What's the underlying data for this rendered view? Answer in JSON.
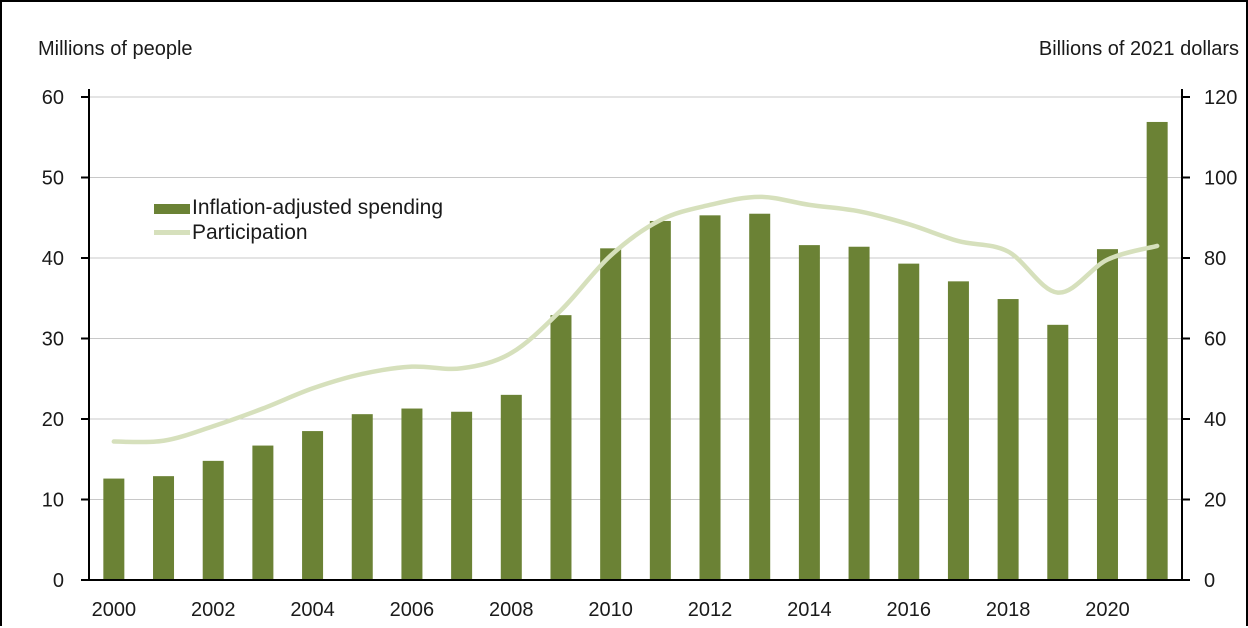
{
  "chart_data": {
    "type": "bar",
    "x": [
      "2000",
      "2001",
      "2002",
      "2003",
      "2004",
      "2005",
      "2006",
      "2007",
      "2008",
      "2009",
      "2010",
      "2011",
      "2012",
      "2013",
      "2014",
      "2015",
      "2016",
      "2017",
      "2018",
      "2019",
      "2020",
      "2021"
    ],
    "x_tick_labels": [
      "2000",
      "2002",
      "2004",
      "2006",
      "2008",
      "2010",
      "2012",
      "2014",
      "2016",
      "2018",
      "2020"
    ],
    "left_axis": {
      "label": "Millions of people",
      "ylim": [
        0,
        60
      ],
      "ticks": [
        0,
        10,
        20,
        30,
        40,
        50,
        60
      ]
    },
    "right_axis": {
      "label": "Billions of 2021 dollars",
      "ylim": [
        0,
        120
      ],
      "ticks": [
        0,
        20,
        40,
        60,
        80,
        100,
        120
      ]
    },
    "grid": true,
    "legend_position": "upper-left",
    "series": [
      {
        "name": "Inflation-adjusted spending",
        "type": "bar",
        "axis": "right",
        "color": "#6b8235",
        "values": [
          25.2,
          25.8,
          29.6,
          33.4,
          37.0,
          41.2,
          42.6,
          41.8,
          46.0,
          65.8,
          82.4,
          89.2,
          90.6,
          91.0,
          83.2,
          82.8,
          78.6,
          74.2,
          69.8,
          63.4,
          82.2,
          113.8
        ]
      },
      {
        "name": "Participation",
        "type": "line",
        "axis": "left",
        "color": "#d6e0bc",
        "values": [
          17.2,
          17.3,
          19.1,
          21.3,
          23.8,
          25.6,
          26.5,
          26.3,
          28.2,
          33.5,
          40.3,
          44.7,
          46.6,
          47.6,
          46.6,
          45.8,
          44.2,
          42.1,
          40.8,
          35.7,
          39.8,
          41.5
        ]
      }
    ]
  }
}
